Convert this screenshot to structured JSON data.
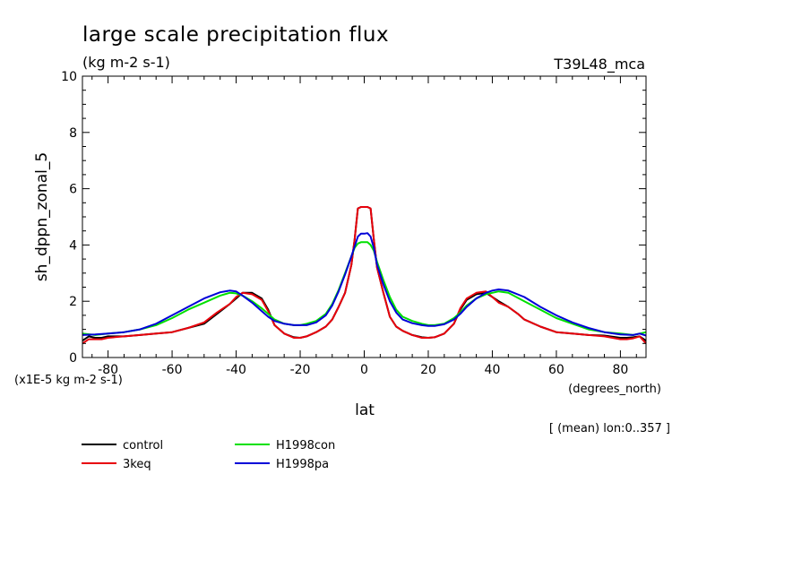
{
  "header": {
    "title": "large scale precipitation flux",
    "units": "(kg m-2 s-1)",
    "experiment": "T39L48_mca"
  },
  "chart_data": {
    "type": "line",
    "title": "large scale precipitation flux",
    "subtitle": "(kg m-2 s-1)",
    "xlabel": "lat",
    "xunits": "(degrees_north)",
    "ylabel": "sh_dppn_zonal_5",
    "yscale_note": "(x1E-5 kg m-2 s-1)",
    "annotation": "[ (mean) lon:0..357 ]",
    "xlim": [
      -88,
      88
    ],
    "ylim": [
      0,
      10
    ],
    "xticks": [
      -80,
      -60,
      -40,
      -20,
      0,
      20,
      40,
      60,
      80
    ],
    "yticks": [
      0,
      2,
      4,
      6,
      8,
      10
    ],
    "legend_position": "bottom-left",
    "grid": false,
    "series": [
      {
        "name": "control",
        "color": "#000000",
        "x": [
          -88,
          -86,
          -84,
          -82,
          -80,
          -75,
          -70,
          -65,
          -60,
          -55,
          -50,
          -46,
          -42,
          -40,
          -38,
          -35,
          -32,
          -30,
          -28,
          -25,
          -22,
          -20,
          -18,
          -15,
          -12,
          -10,
          -8,
          -6,
          -4,
          -3,
          -2,
          -1,
          0,
          1,
          2,
          3,
          4,
          6,
          8,
          10,
          12,
          15,
          18,
          20,
          22,
          25,
          28,
          30,
          32,
          35,
          38,
          40,
          42,
          45,
          48,
          50,
          55,
          60,
          65,
          70,
          75,
          80,
          82,
          84,
          86,
          88
        ],
        "y": [
          0.6,
          0.75,
          0.7,
          0.7,
          0.75,
          0.75,
          0.8,
          0.85,
          0.9,
          1.05,
          1.2,
          1.55,
          1.9,
          2.1,
          2.3,
          2.3,
          2.1,
          1.7,
          1.15,
          0.85,
          0.72,
          0.7,
          0.75,
          0.9,
          1.1,
          1.35,
          1.8,
          2.3,
          3.3,
          4.2,
          5.3,
          5.35,
          5.35,
          5.35,
          5.3,
          4.2,
          3.2,
          2.3,
          1.45,
          1.1,
          0.95,
          0.8,
          0.72,
          0.7,
          0.72,
          0.85,
          1.2,
          1.7,
          2.05,
          2.25,
          2.3,
          2.15,
          2.0,
          1.8,
          1.55,
          1.35,
          1.1,
          0.9,
          0.85,
          0.8,
          0.78,
          0.7,
          0.7,
          0.72,
          0.75,
          0.6
        ]
      },
      {
        "name": "3keq",
        "color": "#e8000b",
        "x": [
          -88,
          -86,
          -84,
          -82,
          -80,
          -75,
          -70,
          -65,
          -60,
          -55,
          -50,
          -46,
          -42,
          -40,
          -38,
          -35,
          -32,
          -30,
          -28,
          -25,
          -22,
          -20,
          -18,
          -15,
          -12,
          -10,
          -8,
          -6,
          -4,
          -3,
          -2,
          -1,
          0,
          1,
          2,
          3,
          4,
          6,
          8,
          10,
          12,
          15,
          18,
          20,
          22,
          25,
          28,
          30,
          32,
          35,
          38,
          40,
          42,
          45,
          48,
          50,
          55,
          60,
          65,
          70,
          75,
          80,
          82,
          84,
          86,
          88
        ],
        "y": [
          0.5,
          0.65,
          0.65,
          0.65,
          0.7,
          0.75,
          0.8,
          0.85,
          0.9,
          1.05,
          1.25,
          1.6,
          1.9,
          2.15,
          2.3,
          2.25,
          2.05,
          1.65,
          1.15,
          0.85,
          0.7,
          0.7,
          0.75,
          0.9,
          1.1,
          1.35,
          1.8,
          2.3,
          3.3,
          4.2,
          5.3,
          5.35,
          5.35,
          5.35,
          5.3,
          4.2,
          3.2,
          2.3,
          1.45,
          1.1,
          0.95,
          0.8,
          0.7,
          0.7,
          0.72,
          0.85,
          1.2,
          1.75,
          2.1,
          2.3,
          2.35,
          2.15,
          1.95,
          1.8,
          1.55,
          1.35,
          1.1,
          0.9,
          0.85,
          0.8,
          0.75,
          0.65,
          0.65,
          0.68,
          0.75,
          0.5
        ]
      },
      {
        "name": "H1998con",
        "color": "#00e000",
        "x": [
          -88,
          -84,
          -80,
          -75,
          -70,
          -65,
          -60,
          -55,
          -50,
          -45,
          -42,
          -40,
          -38,
          -35,
          -32,
          -30,
          -28,
          -25,
          -22,
          -20,
          -18,
          -15,
          -12,
          -10,
          -8,
          -6,
          -4,
          -3,
          -2,
          -1,
          0,
          1,
          2,
          3,
          4,
          6,
          8,
          10,
          12,
          15,
          18,
          20,
          22,
          25,
          28,
          30,
          32,
          35,
          38,
          40,
          42,
          45,
          50,
          55,
          60,
          65,
          70,
          75,
          80,
          84,
          86,
          88
        ],
        "y": [
          0.85,
          0.8,
          0.85,
          0.9,
          1.0,
          1.15,
          1.4,
          1.7,
          1.95,
          2.2,
          2.3,
          2.28,
          2.2,
          2.0,
          1.75,
          1.55,
          1.35,
          1.2,
          1.15,
          1.15,
          1.2,
          1.3,
          1.55,
          1.9,
          2.4,
          3.0,
          3.6,
          3.9,
          4.05,
          4.1,
          4.1,
          4.1,
          4.0,
          3.8,
          3.4,
          2.75,
          2.15,
          1.7,
          1.45,
          1.3,
          1.2,
          1.15,
          1.15,
          1.2,
          1.4,
          1.6,
          1.85,
          2.1,
          2.25,
          2.3,
          2.35,
          2.3,
          2.0,
          1.7,
          1.4,
          1.2,
          1.0,
          0.9,
          0.85,
          0.8,
          0.85,
          0.9
        ]
      },
      {
        "name": "H1998pa",
        "color": "#0000d8",
        "x": [
          -88,
          -84,
          -80,
          -75,
          -70,
          -65,
          -60,
          -55,
          -50,
          -45,
          -42,
          -40,
          -38,
          -35,
          -32,
          -30,
          -28,
          -25,
          -22,
          -20,
          -18,
          -15,
          -12,
          -10,
          -8,
          -6,
          -4,
          -3,
          -2,
          -1,
          0,
          1,
          2,
          3,
          4,
          6,
          8,
          10,
          12,
          15,
          18,
          20,
          22,
          25,
          28,
          30,
          32,
          35,
          38,
          40,
          42,
          45,
          50,
          55,
          60,
          65,
          70,
          75,
          80,
          84,
          86,
          88
        ],
        "y": [
          0.8,
          0.82,
          0.85,
          0.9,
          1.0,
          1.2,
          1.5,
          1.8,
          2.1,
          2.32,
          2.38,
          2.35,
          2.2,
          1.95,
          1.65,
          1.45,
          1.3,
          1.2,
          1.15,
          1.15,
          1.15,
          1.25,
          1.5,
          1.85,
          2.35,
          2.95,
          3.6,
          3.95,
          4.3,
          4.4,
          4.4,
          4.42,
          4.3,
          3.9,
          3.3,
          2.6,
          2.0,
          1.6,
          1.35,
          1.22,
          1.15,
          1.12,
          1.12,
          1.18,
          1.35,
          1.55,
          1.8,
          2.1,
          2.3,
          2.38,
          2.42,
          2.38,
          2.15,
          1.8,
          1.5,
          1.25,
          1.05,
          0.9,
          0.82,
          0.8,
          0.85,
          0.78
        ]
      }
    ]
  }
}
